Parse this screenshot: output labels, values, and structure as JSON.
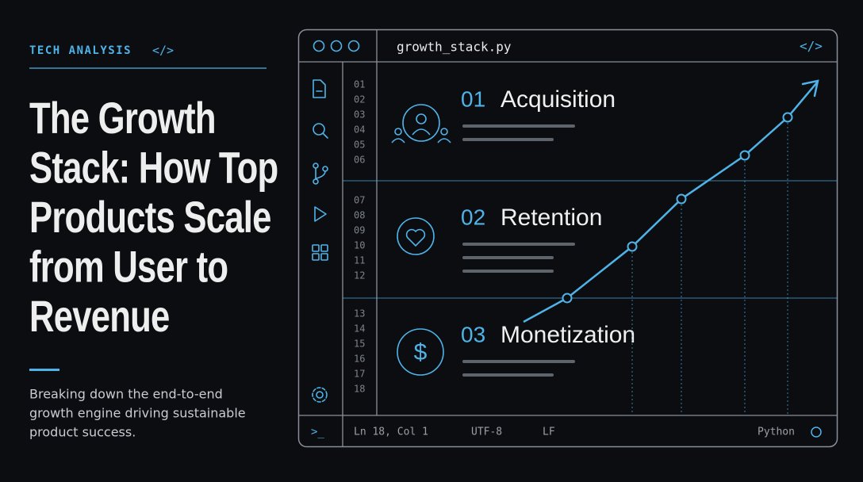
{
  "header": {
    "kicker": "TECH ANALYSIS",
    "kicker_icon": "</>",
    "title_lines": [
      "The Growth",
      "Stack: How Top",
      "Products Scale",
      "from User to",
      "Revenue"
    ],
    "subtitle_lines": [
      "Breaking down the end-to-end",
      "growth engine driving sustainable",
      "product success."
    ]
  },
  "editor": {
    "filename": "growth_stack.py",
    "header_icon": "</>",
    "line_numbers": [
      [
        "01",
        "02",
        "03",
        "04",
        "05",
        "06"
      ],
      [
        "07",
        "08",
        "09",
        "10",
        "11",
        "12"
      ],
      [
        "13",
        "14",
        "15",
        "16",
        "17",
        "18"
      ]
    ],
    "sections": [
      {
        "number": "01",
        "label": "Acquisition"
      },
      {
        "number": "02",
        "label": "Retention"
      },
      {
        "number": "03",
        "label": "Monetization"
      }
    ],
    "status_bar": {
      "prompt": ">_",
      "position": "Ln 18, Col 1",
      "encoding": "UTF-8",
      "line_ending": "LF",
      "language": "Python"
    }
  }
}
